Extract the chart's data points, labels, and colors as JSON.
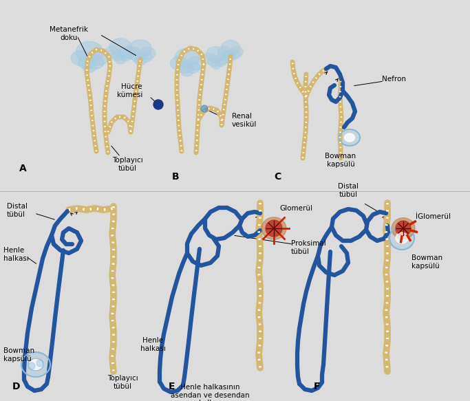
{
  "bg_color": "#dcdcdc",
  "yellow": "#d4b870",
  "blue_dark": "#2255a0",
  "blue_light": "#88b8d8",
  "blue_cloud": "#a8cce0",
  "blue_dot": "#1a3888",
  "red_glom": "#b83020",
  "orange_glom": "#c07030",
  "lw_yellow": 5.0,
  "lw_blue": 4.5,
  "fs_label": 7.5,
  "fs_panel": 10,
  "ann": {
    "metanefrik_doku": "Metanefrik\ndoku",
    "toplayici_A": "Toplayıcı\ntübül",
    "hucre_kumesi": "Hücre\nkümesi",
    "renal_vesikul": "Renal\nvesikül",
    "nefron": "Nefron",
    "bowman_C": "Bowman\nkapsülü",
    "distal_D": "Distal\ntübül",
    "henle_D": "Henle\nhalkası",
    "bowman_D": "Bowman\nkapsülü",
    "toplayici_D": "Toplayıcı\ntübül",
    "glomerul_E": "Glomerül",
    "proksimal_E": "Proksimal\ntübül",
    "henle_E": "Henle\nhalkası",
    "henle_kollar": "Henle halkasının\nasendan ve desendan\nkolları",
    "distal_F": "Distal\ntübül",
    "glomerul_F": "İGlomerül",
    "bowman_F": "Bowman\nkapsülü"
  }
}
